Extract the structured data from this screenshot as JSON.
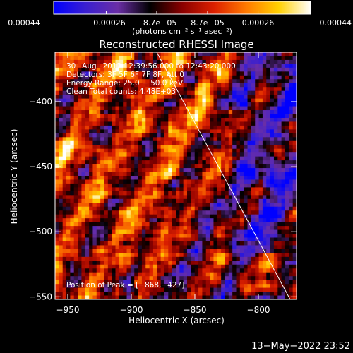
{
  "chart_data": {
    "type": "heatmap",
    "title": "Reconstructed RHESSI Image",
    "xlabel": "Heliocentric X (arcsec)",
    "ylabel": "Heliocentric Y (arcsec)",
    "xlim": [
      -960,
      -770
    ],
    "ylim": [
      -552,
      -362
    ],
    "x_ticks": [
      -950,
      -900,
      -850,
      -800
    ],
    "y_ticks": [
      -550,
      -500,
      -450,
      -400
    ],
    "x_tick_labels": [
      "−950",
      "−900",
      "−850",
      "−800"
    ],
    "y_tick_labels": [
      "−550",
      "−500",
      "−450",
      "−400"
    ],
    "colorbar": {
      "range": [
        -0.00044,
        0.00044
      ],
      "tick_values": [
        -0.00044,
        -0.00026,
        -8.7e-05,
        8.7e-05,
        0.00026,
        0.00044
      ],
      "tick_labels": [
        "−0.00044",
        "−0.00026",
        "−8.7e−05",
        "8.7e−05",
        "0.00026",
        "0.00044"
      ],
      "units_label": "(photons cm⁻² s⁻¹ asec⁻²)",
      "colors": [
        "#0000ff",
        "#3a1fd0",
        "#6a2ea6",
        "#000000",
        "#8a0000",
        "#dd2000",
        "#ff7a00",
        "#ffd000",
        "#ffffff"
      ]
    },
    "annotations": {
      "line1": "30−Aug−2012 12:39:56.000 to 12:43:20.000",
      "line2": "Detectors: 3F 5F 6F 7F 8F, Att 0",
      "line3": "Energy Range: 25.0 − 50.0 keV",
      "line4": "Clean     Total counts: 4.48E+03",
      "peak": "Position of Peak = [−868,−427]"
    },
    "peak_position": [
      -868,
      -427
    ],
    "limb_line": [
      [
        -880,
        -362
      ],
      [
        -775,
        -552
      ]
    ],
    "grid": false
  },
  "footer": {
    "timestamp": "13−May−2022 23:52"
  }
}
